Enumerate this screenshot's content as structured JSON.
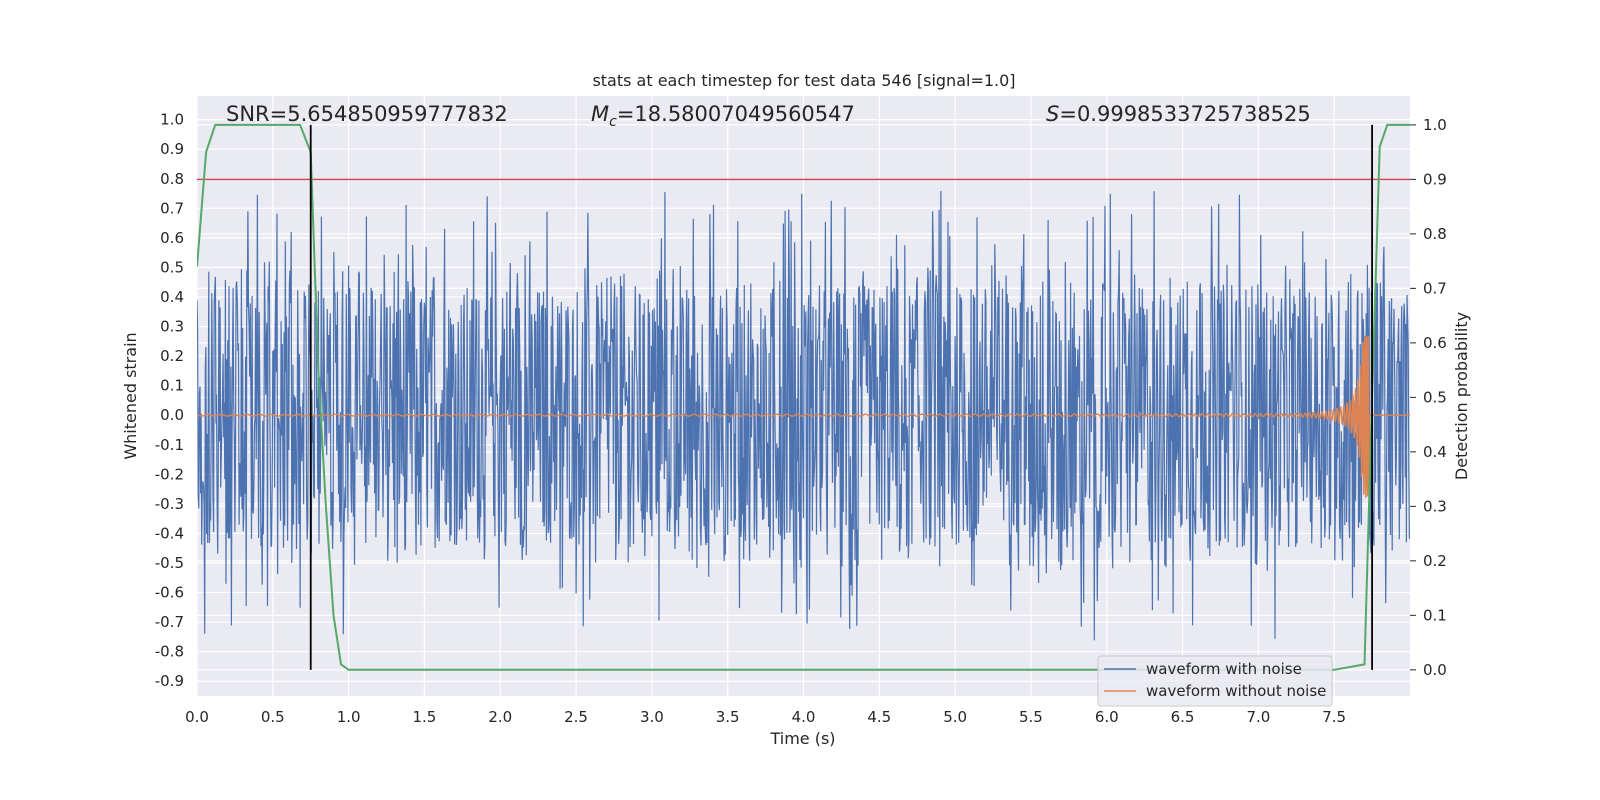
{
  "chart_data": {
    "type": "line",
    "title": "stats at each timestep for test data 546 [signal=1.0]",
    "xlabel": "Time (s)",
    "ylabel": "Whitened strain",
    "ylabel_right": "Detection probability",
    "xlim": [
      0.0,
      8.0
    ],
    "ylim": [
      -0.95,
      1.08
    ],
    "ylim_right": [
      -0.048,
      1.053
    ],
    "x_ticks": [
      "0.0",
      "0.5",
      "1.0",
      "1.5",
      "2.0",
      "2.5",
      "3.0",
      "3.5",
      "4.0",
      "4.5",
      "5.0",
      "5.5",
      "6.0",
      "6.5",
      "7.0",
      "7.5"
    ],
    "y_ticks": [
      "-0.9",
      "-0.8",
      "-0.7",
      "-0.6",
      "-0.5",
      "-0.4",
      "-0.3",
      "-0.2",
      "-0.1",
      "0.0",
      "0.1",
      "0.2",
      "0.3",
      "0.4",
      "0.5",
      "0.6",
      "0.7",
      "0.8",
      "0.9",
      "1.0"
    ],
    "y_ticks_right": [
      "0.0",
      "0.1",
      "0.2",
      "0.3",
      "0.4",
      "0.5",
      "0.6",
      "0.7",
      "0.8",
      "0.9",
      "1.0"
    ],
    "grid": true,
    "legend_position": "lower-right",
    "annotations": {
      "snr": "SNR=5.654850959777832",
      "mc_symbol": "M",
      "mc_sub": "c",
      "mc_value": "=18.58007049560547",
      "s_symbol": "S",
      "s_value": "=0.9998533725738525"
    },
    "threshold_right": 0.9,
    "vlines_x": [
      0.75,
      7.75
    ],
    "series": [
      {
        "name": "waveform with noise",
        "color": "#4c72b0",
        "envelope": [
          0.45,
          -0.45
        ],
        "sample_rate_hz": 256,
        "duration_s": 8.0
      },
      {
        "name": "waveform without noise",
        "color": "#dd8452",
        "merger_time_s": 7.73,
        "peak_amplitude": 0.28
      },
      {
        "color": "#55a868",
        "x": [
          0.0,
          0.06,
          0.12,
          0.25,
          0.4,
          0.55,
          0.68,
          0.75,
          0.8,
          0.85,
          0.9,
          0.95,
          1.0,
          2.0,
          3.0,
          4.0,
          5.0,
          6.0,
          7.0,
          7.5,
          7.7,
          7.75,
          7.8,
          7.85,
          7.9,
          8.0
        ],
        "y": [
          0.74,
          0.95,
          1.0,
          1.0,
          1.0,
          1.0,
          1.0,
          0.95,
          0.55,
          0.3,
          0.1,
          0.01,
          0.0,
          0.0,
          0.0,
          0.0,
          0.0,
          0.0,
          0.0,
          0.0,
          0.01,
          0.5,
          0.96,
          1.0,
          1.0,
          1.0
        ]
      },
      {
        "color": "#c44e52"
      }
    ]
  }
}
